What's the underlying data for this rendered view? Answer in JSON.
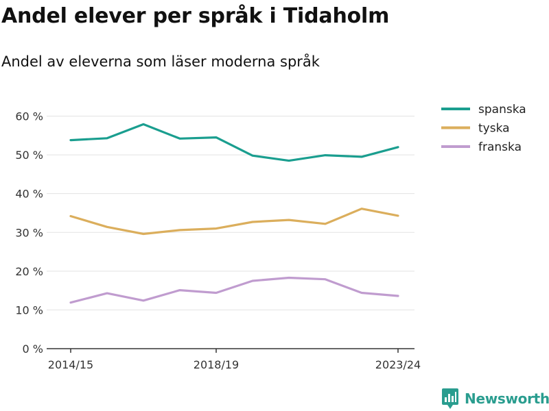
{
  "title": "Andel elever per språk i Tidaholm",
  "subtitle": "Andel av eleverna som läser moderna språk",
  "brand": "Newsworthy",
  "chart_data": {
    "type": "line",
    "x": [
      "2014/15",
      "2015/16",
      "2016/17",
      "2017/18",
      "2018/19",
      "2019/20",
      "2020/21",
      "2021/22",
      "2022/23",
      "2023/24"
    ],
    "x_tick_labels": [
      "2014/15",
      "2018/19",
      "2023/24"
    ],
    "y_ticks": [
      "0 %",
      "10 %",
      "20 %",
      "30 %",
      "40 %",
      "50 %",
      "60 %"
    ],
    "ylim": [
      0,
      60
    ],
    "series": [
      {
        "name": "spanska",
        "color": "#1a9e8f",
        "values": [
          53.8,
          54.3,
          57.9,
          54.2,
          54.5,
          49.8,
          48.5,
          49.9,
          49.5,
          52.0
        ]
      },
      {
        "name": "tyska",
        "color": "#dbae5c",
        "values": [
          34.2,
          31.4,
          29.6,
          30.6,
          31.0,
          32.7,
          33.2,
          32.2,
          36.1,
          34.3
        ]
      },
      {
        "name": "franska",
        "color": "#c09ccf",
        "values": [
          11.9,
          14.3,
          12.4,
          15.1,
          14.4,
          17.5,
          18.3,
          17.9,
          14.4,
          13.6
        ]
      }
    ],
    "legend_position": "top-right",
    "grid": true
  },
  "colors": {
    "brand": "#2a9d8f"
  }
}
